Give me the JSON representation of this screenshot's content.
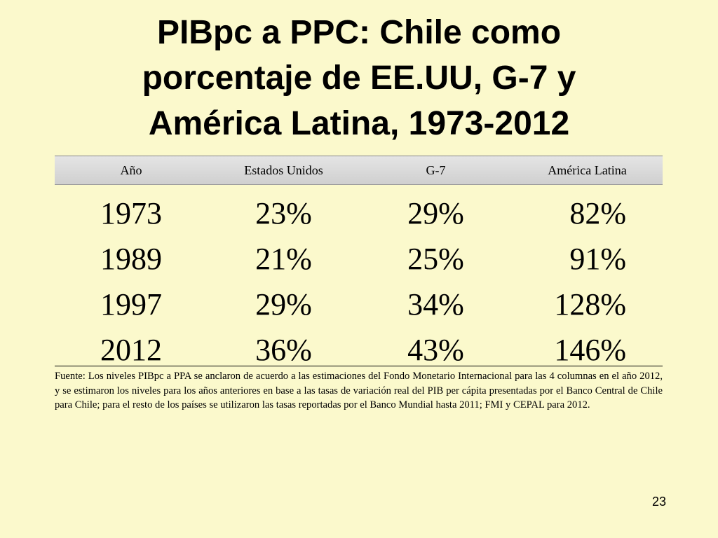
{
  "slide": {
    "title_lines": [
      "PIBpc a PPC: Chile como",
      "porcentaje de EE.UU, G-7 y",
      "América Latina, 1973-2012"
    ],
    "table": {
      "header": [
        "Año",
        "Estados Unidos",
        "G-7",
        "América Latina"
      ],
      "rows": [
        [
          "1973",
          "23%",
          "29%",
          "82%"
        ],
        [
          "1989",
          "21%",
          "25%",
          "91%"
        ],
        [
          "1997",
          "29%",
          "34%",
          "128%"
        ],
        [
          "2012",
          "36%",
          "43%",
          "146%"
        ]
      ]
    },
    "footnote": "Fuente: Los niveles PIBpc a PPA se anclaron de acuerdo a las estimaciones del Fondo Monetario Internacional para las 4 columnas en el año 2012, y se estimaron los niveles para los años anteriores en base a las tasas de variación real del PIB per cápita presentadas por el Banco Central de Chile para Chile; para el resto de los países se utilizaron las tasas reportadas por el Banco Mundial hasta 2011; FMI y CEPAL para 2012.",
    "page_number": "23"
  }
}
